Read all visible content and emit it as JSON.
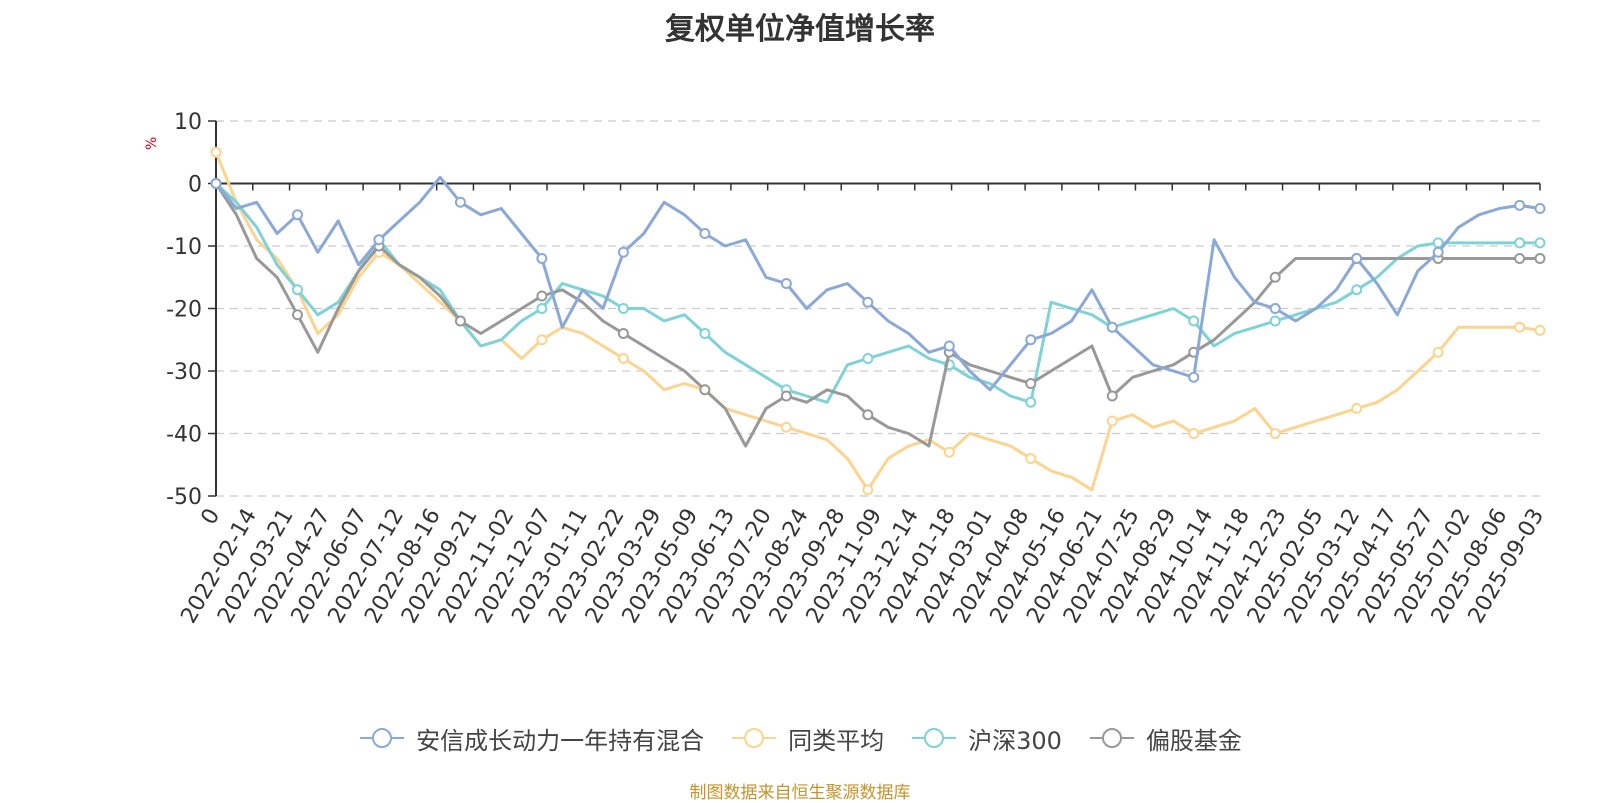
{
  "chart_data": {
    "type": "line",
    "title": "复权单位净值增长率",
    "ylabel": "%",
    "ylim": [
      -50,
      10
    ],
    "y_ticks": [
      "10",
      "0",
      "-10",
      "-20",
      "-30",
      "-40",
      "-50"
    ],
    "x_tick_labels": [
      "0",
      "2022-02-14",
      "2022-03-21",
      "2022-04-27",
      "2022-06-07",
      "2022-07-12",
      "2022-08-16",
      "2022-09-21",
      "2022-11-02",
      "2022-12-07",
      "2023-01-11",
      "2023-02-22",
      "2023-03-29",
      "2023-05-09",
      "2023-06-13",
      "2023-07-20",
      "2023-08-24",
      "2023-09-28",
      "2023-11-09",
      "2023-12-14",
      "2024-01-18",
      "2024-03-01",
      "2024-04-08",
      "2024-05-16",
      "2024-06-21",
      "2024-07-25",
      "2024-08-29",
      "2024-10-14",
      "2024-11-18",
      "2024-12-23",
      "2025-02-05",
      "2025-03-12",
      "2025-04-17",
      "2025-05-27",
      "2025-07-02",
      "2025-08-06",
      "2025-09-03"
    ],
    "grid": true,
    "legend_position": "bottom",
    "series": [
      {
        "name": "安信成长动力一年持有混合",
        "color": "#8aa9d6",
        "values": [
          0,
          -4,
          -3,
          -8,
          -5,
          -11,
          -6,
          -13,
          -9,
          -6,
          -3,
          1,
          -3,
          -5,
          -4,
          -8,
          -12,
          -23,
          -17,
          -20,
          -11,
          -8,
          -3,
          -5,
          -8,
          -10,
          -9,
          -15,
          -16,
          -20,
          -17,
          -16,
          -19,
          -22,
          -24,
          -27,
          -26,
          -30,
          -33,
          -29,
          -25,
          -24,
          -22,
          -17,
          -23,
          -26,
          -29,
          -30,
          -31,
          -9,
          -15,
          -19,
          -20,
          -22,
          -20,
          -17,
          -12,
          -16,
          -21,
          -14,
          -11,
          -7,
          -5,
          -4,
          -3.5,
          -4
        ]
      },
      {
        "name": "同类平均",
        "color": "#fcd48f",
        "values": [
          5,
          -3,
          -9,
          -12,
          -17,
          -24,
          -21,
          -15,
          -11,
          -13,
          -16,
          -19,
          -22,
          -26,
          -25,
          -28,
          -25,
          -23,
          -24,
          -26,
          -28,
          -30,
          -33,
          -32,
          -33,
          -36,
          -37,
          -38,
          -39,
          -40,
          -41,
          -44,
          -49,
          -44,
          -42,
          -41,
          -43,
          -40,
          -41,
          -42,
          -44,
          -46,
          -47,
          -49,
          -38,
          -37,
          -39,
          -38,
          -40,
          -39,
          -38,
          -36,
          -40,
          -39,
          -38,
          -37,
          -36,
          -35,
          -33,
          -30,
          -27,
          -23,
          -23,
          -23,
          -23,
          -23.5
        ]
      },
      {
        "name": "沪深300",
        "color": "#7dd3d8",
        "values": [
          0,
          -3,
          -7,
          -13,
          -17,
          -21,
          -19,
          -14,
          -9,
          -13,
          -15,
          -17,
          -22,
          -26,
          -25,
          -22,
          -20,
          -16,
          -17,
          -18,
          -20,
          -20,
          -22,
          -21,
          -24,
          -27,
          -29,
          -31,
          -33,
          -34,
          -35,
          -29,
          -28,
          -27,
          -26,
          -28,
          -29,
          -31,
          -32,
          -34,
          -35,
          -19,
          -20,
          -21,
          -23,
          -22,
          -21,
          -20,
          -22,
          -26,
          -24,
          -23,
          -22,
          -21,
          -20,
          -19,
          -17,
          -15,
          -12,
          -10,
          -9.5,
          -9.5,
          -9.5,
          -9.5,
          -9.5,
          -9.5
        ]
      },
      {
        "name": "偏股基金",
        "color": "#999999",
        "values": [
          0,
          -5,
          -12,
          -15,
          -21,
          -27,
          -20,
          -14,
          -10,
          -13,
          -15,
          -18,
          -22,
          -24,
          -22,
          -20,
          -18,
          -17,
          -19,
          -22,
          -24,
          -26,
          -28,
          -30,
          -33,
          -36,
          -42,
          -36,
          -34,
          -35,
          -33,
          -34,
          -37,
          -39,
          -40,
          -42,
          -27,
          -29,
          -30,
          -31,
          -32,
          -30,
          -28,
          -26,
          -34,
          -31,
          -30,
          -29,
          -27,
          -25,
          -22,
          -19,
          -15,
          -12,
          -12,
          -12,
          -12,
          -12,
          -12,
          -12,
          -12,
          -12,
          -12,
          -12,
          -12,
          -12
        ]
      }
    ]
  },
  "legend": {
    "items": [
      "安信成长动力一年持有混合",
      "同类平均",
      "沪深300",
      "偏股基金"
    ]
  },
  "footer": {
    "source": "制图数据来自恒生聚源数据库"
  }
}
